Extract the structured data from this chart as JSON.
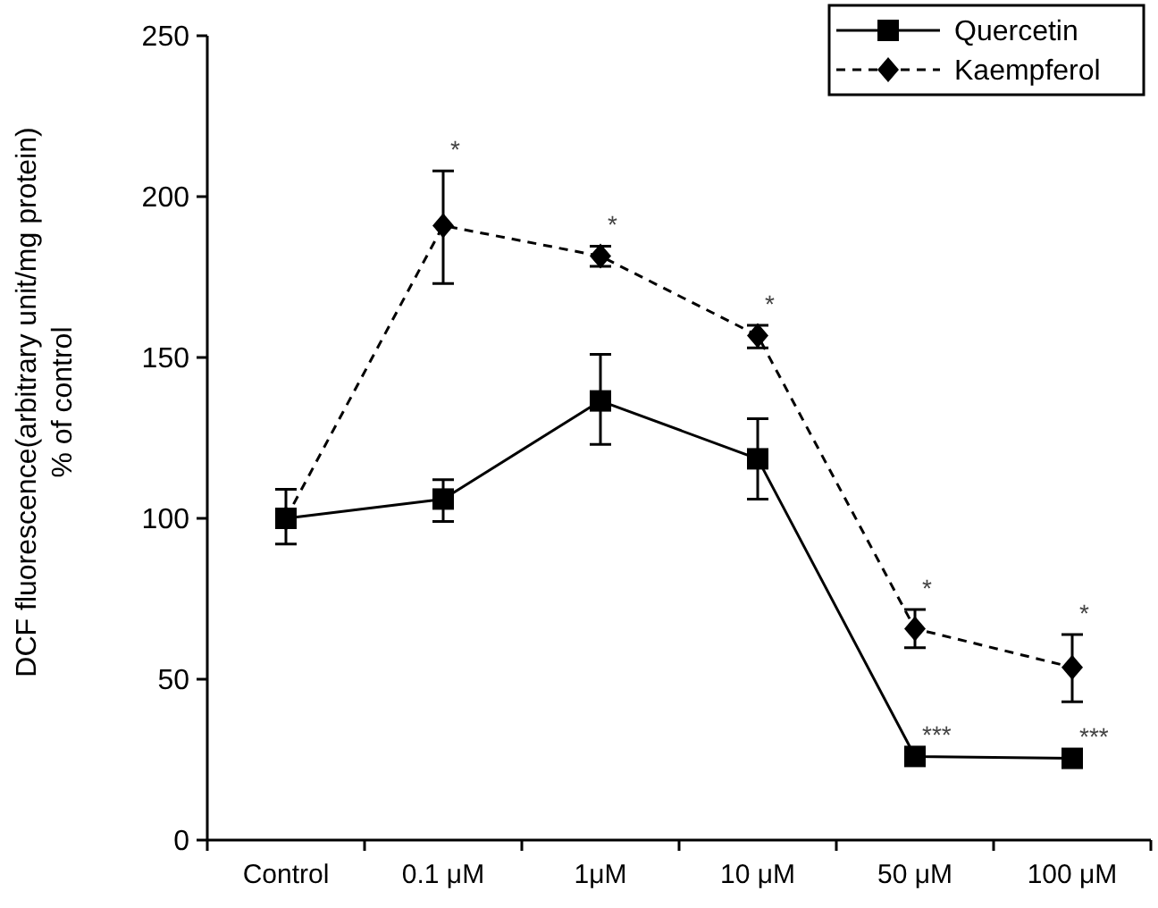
{
  "chart_data": {
    "type": "line",
    "ylabel": "DCF fluorescence(arbitrary unit/mg protein)\n% of control",
    "categories": [
      "Control",
      "0.1 μM",
      "1μM",
      "10 μM",
      "50 μM",
      "100 μM"
    ],
    "ylim": [
      0,
      250
    ],
    "yticks": [
      0,
      50,
      100,
      150,
      200,
      250
    ],
    "legend": "top right",
    "series": [
      {
        "name": "Quercetin",
        "color": "#000000",
        "marker": "square",
        "line_style": "solid",
        "values": [
          100,
          106,
          136.5,
          118.5,
          26,
          25.4
        ],
        "errors": [
          [
            92,
            109
          ],
          [
            99,
            112
          ],
          [
            123,
            151
          ],
          [
            106,
            131
          ],
          [
            24,
            28
          ],
          [
            23.5,
            27.5
          ]
        ]
      },
      {
        "name": "Kaempferol",
        "color": "#000000",
        "marker": "diamond",
        "line_style": "dashed",
        "values": [
          100,
          191,
          181.5,
          156.8,
          65.7,
          53.7
        ],
        "errors": [
          null,
          [
            173,
            208
          ],
          [
            178.3,
            184.6
          ],
          [
            153,
            160
          ],
          [
            59.8,
            71.7
          ],
          [
            43,
            63.9
          ]
        ]
      }
    ],
    "annotations": [
      {
        "text": "*",
        "x": "0.1 μM",
        "y": 208
      },
      {
        "text": "*",
        "x": "1μM",
        "y": 184.6
      },
      {
        "text": "*",
        "x": "10 μM",
        "y": 160
      },
      {
        "text": "*",
        "x": "50 μM",
        "y": 71.7
      },
      {
        "text": "*",
        "x": "100 μM",
        "y": 63.9
      },
      {
        "text": "***",
        "x": "50 μM",
        "y": 26
      },
      {
        "text": "***",
        "x": "100 μM",
        "y": 25.4
      }
    ]
  }
}
